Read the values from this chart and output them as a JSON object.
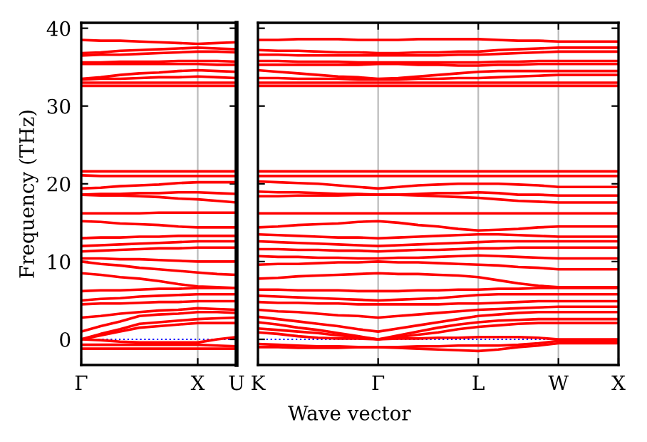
{
  "chart_data": [
    {
      "type": "line",
      "ylabel": "Frequency (THz)",
      "ylim": [
        -3.3,
        40.7
      ],
      "yticks": [
        0,
        10,
        20,
        30,
        40
      ],
      "grid": false,
      "legend": false,
      "marker": "none",
      "line_style": "solid",
      "categories": [
        "Γ",
        null,
        null,
        null,
        null,
        null,
        "X",
        null,
        "U"
      ],
      "ref_lines": [
        {
          "axis": "y",
          "value": 0,
          "color": "#0000ff",
          "line_style": "dotted"
        },
        {
          "axis": "x",
          "value": "X",
          "color": "#bbbbbb",
          "line_style": "solid"
        }
      ],
      "series": [
        {
          "color": "#ff0000",
          "values": [
            38.5,
            38.4,
            38.4,
            38.3,
            38.2,
            38.1,
            38.0,
            38.1,
            38.2
          ]
        },
        {
          "color": "#ff0000",
          "values": [
            36.8,
            36.9,
            37.1,
            37.2,
            37.3,
            37.4,
            37.5,
            37.4,
            37.3
          ]
        },
        {
          "color": "#ff0000",
          "values": [
            36.5,
            36.6,
            36.6,
            36.7,
            36.8,
            36.9,
            37.0,
            37.0,
            36.9
          ]
        },
        {
          "color": "#ff0000",
          "values": [
            35.6,
            35.6,
            35.7,
            35.7,
            35.7,
            35.8,
            35.8,
            35.8,
            35.7
          ]
        },
        {
          "color": "#ff0000",
          "values": [
            35.4,
            35.4,
            35.4,
            35.4,
            35.4,
            35.4,
            35.4,
            35.3,
            35.3
          ]
        },
        {
          "color": "#ff0000",
          "values": [
            33.5,
            33.7,
            34.0,
            34.2,
            34.3,
            34.5,
            34.6,
            34.5,
            34.4
          ]
        },
        {
          "color": "#ff0000",
          "values": [
            33.4,
            33.5,
            33.5,
            33.6,
            33.7,
            33.7,
            33.8,
            33.7,
            33.6
          ]
        },
        {
          "color": "#ff0000",
          "values": [
            33.0,
            33.0,
            33.0,
            33.0,
            33.0,
            33.0,
            33.0,
            33.0,
            33.0
          ]
        },
        {
          "color": "#ff0000",
          "values": [
            32.6,
            32.6,
            32.6,
            32.6,
            32.6,
            32.6,
            32.6,
            32.6,
            32.6
          ]
        },
        {
          "color": "#ff0000",
          "values": [
            21.6,
            21.6,
            21.6,
            21.6,
            21.6,
            21.6,
            21.6,
            21.6,
            21.6
          ]
        },
        {
          "color": "#ff0000",
          "values": [
            21.1,
            21.0,
            21.0,
            21.0,
            21.0,
            21.0,
            21.0,
            21.0,
            21.0
          ]
        },
        {
          "color": "#ff0000",
          "values": [
            19.4,
            19.5,
            19.7,
            19.8,
            19.9,
            20.1,
            20.2,
            20.2,
            20.2
          ]
        },
        {
          "color": "#ff0000",
          "values": [
            18.6,
            18.7,
            18.7,
            18.8,
            18.8,
            18.9,
            18.9,
            18.8,
            18.7
          ]
        },
        {
          "color": "#ff0000",
          "values": [
            18.6,
            18.5,
            18.5,
            18.4,
            18.3,
            18.1,
            18.0,
            17.8,
            17.6
          ]
        },
        {
          "color": "#ff0000",
          "values": [
            16.2,
            16.2,
            16.2,
            16.2,
            16.3,
            16.3,
            16.3,
            16.3,
            16.3
          ]
        },
        {
          "color": "#ff0000",
          "values": [
            15.2,
            15.1,
            14.9,
            14.8,
            14.7,
            14.5,
            14.4,
            14.4,
            14.4
          ]
        },
        {
          "color": "#ff0000",
          "values": [
            13.0,
            13.1,
            13.1,
            13.2,
            13.2,
            13.3,
            13.3,
            13.3,
            13.3
          ]
        },
        {
          "color": "#ff0000",
          "values": [
            12.0,
            12.1,
            12.2,
            12.3,
            12.4,
            12.5,
            12.6,
            12.6,
            12.6
          ]
        },
        {
          "color": "#ff0000",
          "values": [
            11.3,
            11.4,
            11.5,
            11.6,
            11.7,
            11.7,
            11.8,
            11.8,
            11.8
          ]
        },
        {
          "color": "#ff0000",
          "values": [
            10.4,
            10.4,
            10.3,
            10.3,
            10.2,
            10.1,
            10.0,
            10.0,
            10.0
          ]
        },
        {
          "color": "#ff0000",
          "values": [
            10.0,
            9.7,
            9.5,
            9.2,
            9.0,
            8.8,
            8.6,
            8.4,
            8.3
          ]
        },
        {
          "color": "#ff0000",
          "values": [
            8.5,
            8.3,
            8.0,
            7.8,
            7.5,
            7.1,
            6.8,
            6.7,
            6.6
          ]
        },
        {
          "color": "#ff0000",
          "values": [
            6.2,
            6.3,
            6.3,
            6.4,
            6.5,
            6.5,
            6.6,
            6.6,
            6.6
          ]
        },
        {
          "color": "#ff0000",
          "values": [
            5.0,
            5.2,
            5.3,
            5.5,
            5.6,
            5.7,
            5.8,
            5.8,
            5.8
          ]
        },
        {
          "color": "#ff0000",
          "values": [
            4.5,
            4.6,
            4.6,
            4.7,
            4.8,
            4.8,
            4.9,
            4.9,
            4.9
          ]
        },
        {
          "color": "#ff0000",
          "values": [
            2.8,
            3.0,
            3.3,
            3.5,
            3.7,
            3.8,
            4.0,
            3.9,
            3.8
          ]
        },
        {
          "color": "#ff0000",
          "values": [
            1.0,
            1.7,
            2.3,
            3.0,
            3.2,
            3.3,
            3.5,
            3.5,
            3.4
          ]
        },
        {
          "color": "#ff0000",
          "values": [
            0.0,
            0.7,
            1.3,
            2.0,
            2.2,
            2.4,
            2.6,
            2.7,
            2.8
          ]
        },
        {
          "color": "#ff0000",
          "values": [
            0.0,
            0.5,
            1.0,
            1.5,
            1.7,
            1.9,
            2.1,
            2.1,
            2.1
          ]
        },
        {
          "color": "#ff0000",
          "values": [
            0.0,
            -0.1,
            -0.3,
            -0.4,
            -0.4,
            -0.4,
            -0.4,
            0.0,
            0.3
          ]
        },
        {
          "color": "#ff0000",
          "values": [
            -0.7,
            -0.7,
            -0.7,
            -0.7,
            -0.7,
            -0.7,
            -0.7,
            -0.8,
            -0.9
          ]
        },
        {
          "color": "#ff0000",
          "values": [
            -1.2,
            -1.2,
            -1.2,
            -1.2,
            -1.2,
            -1.2,
            -1.2,
            -1.2,
            -1.2
          ]
        }
      ]
    },
    {
      "type": "line",
      "xlabel": "Wave vector",
      "ylim": [
        -3.3,
        40.7
      ],
      "yticks": [
        0,
        10,
        20,
        30,
        40
      ],
      "tick_labels": "x",
      "grid": false,
      "legend": false,
      "marker": "none",
      "line_style": "solid",
      "categories": [
        "K",
        null,
        null,
        null,
        null,
        null,
        "Γ",
        null,
        null,
        null,
        null,
        "L",
        null,
        null,
        null,
        "W",
        null,
        null,
        "X"
      ],
      "ref_lines": [
        {
          "axis": "y",
          "value": 0,
          "color": "#0000ff",
          "line_style": "dotted"
        },
        {
          "axis": "x",
          "value": "Γ",
          "color": "#bbbbbb",
          "line_style": "solid"
        },
        {
          "axis": "x",
          "value": "L",
          "color": "#bbbbbb",
          "line_style": "solid"
        },
        {
          "axis": "x",
          "value": "W",
          "color": "#bbbbbb",
          "line_style": "solid"
        }
      ],
      "series": [
        {
          "color": "#ff0000",
          "values": [
            38.5,
            38.5,
            38.6,
            38.6,
            38.6,
            38.5,
            38.5,
            38.5,
            38.6,
            38.6,
            38.6,
            38.6,
            38.5,
            38.4,
            38.4,
            38.3,
            38.3,
            38.3,
            38.3
          ]
        },
        {
          "color": "#ff0000",
          "values": [
            37.2,
            37.1,
            37.1,
            37.0,
            36.9,
            36.9,
            36.8,
            36.8,
            36.9,
            36.9,
            37.0,
            37.0,
            37.2,
            37.3,
            37.4,
            37.5,
            37.5,
            37.5,
            37.5
          ]
        },
        {
          "color": "#ff0000",
          "values": [
            36.6,
            36.6,
            36.5,
            36.5,
            36.5,
            36.5,
            36.5,
            36.5,
            36.5,
            36.5,
            36.6,
            36.6,
            36.7,
            36.8,
            36.9,
            37.0,
            37.0,
            37.0,
            37.0
          ]
        },
        {
          "color": "#ff0000",
          "values": [
            35.8,
            35.8,
            35.7,
            35.7,
            35.7,
            35.6,
            35.6,
            35.6,
            35.6,
            35.6,
            35.6,
            35.6,
            35.7,
            35.7,
            35.8,
            35.8,
            35.8,
            35.8,
            35.8
          ]
        },
        {
          "color": "#ff0000",
          "values": [
            35.3,
            35.3,
            35.3,
            35.3,
            35.3,
            35.3,
            35.4,
            35.4,
            35.3,
            35.3,
            35.2,
            35.2,
            35.3,
            35.3,
            35.4,
            35.4,
            35.4,
            35.4,
            35.4
          ]
        },
        {
          "color": "#ff0000",
          "values": [
            34.6,
            34.4,
            34.2,
            34.0,
            33.8,
            33.7,
            33.5,
            33.6,
            33.8,
            34.0,
            34.2,
            34.4,
            34.5,
            34.5,
            34.5,
            34.5,
            34.5,
            34.5,
            34.5
          ]
        },
        {
          "color": "#ff0000",
          "values": [
            33.6,
            33.6,
            33.5,
            33.5,
            33.5,
            33.4,
            33.4,
            33.4,
            33.5,
            33.5,
            33.6,
            33.6,
            33.7,
            33.8,
            33.9,
            34.0,
            34.0,
            34.0,
            34.0
          ]
        },
        {
          "color": "#ff0000",
          "values": [
            33.0,
            33.0,
            33.0,
            33.0,
            33.0,
            33.0,
            33.0,
            33.0,
            33.0,
            33.0,
            33.0,
            33.0,
            33.0,
            33.0,
            33.0,
            33.0,
            33.0,
            33.0,
            33.0
          ]
        },
        {
          "color": "#ff0000",
          "values": [
            32.6,
            32.6,
            32.6,
            32.6,
            32.6,
            32.6,
            32.6,
            32.6,
            32.6,
            32.6,
            32.6,
            32.6,
            32.6,
            32.6,
            32.6,
            32.6,
            32.6,
            32.6,
            32.6
          ]
        },
        {
          "color": "#ff0000",
          "values": [
            21.6,
            21.6,
            21.6,
            21.6,
            21.6,
            21.6,
            21.6,
            21.6,
            21.6,
            21.6,
            21.6,
            21.6,
            21.6,
            21.6,
            21.6,
            21.6,
            21.6,
            21.6,
            21.6
          ]
        },
        {
          "color": "#ff0000",
          "values": [
            21.0,
            21.0,
            21.0,
            21.0,
            21.0,
            21.0,
            21.0,
            21.0,
            21.0,
            21.0,
            21.0,
            21.0,
            21.0,
            21.0,
            21.0,
            21.0,
            21.0,
            21.0,
            21.0
          ]
        },
        {
          "color": "#ff0000",
          "values": [
            20.3,
            20.2,
            20.1,
            20.0,
            19.8,
            19.6,
            19.4,
            19.6,
            19.8,
            19.9,
            20.0,
            20.0,
            20.0,
            19.9,
            19.8,
            19.6,
            19.6,
            19.6,
            19.6
          ]
        },
        {
          "color": "#ff0000",
          "values": [
            19.0,
            18.9,
            18.9,
            18.8,
            18.7,
            18.7,
            18.6,
            18.6,
            18.7,
            18.8,
            18.8,
            18.9,
            18.8,
            18.6,
            18.6,
            18.5,
            18.5,
            18.5,
            18.5
          ]
        },
        {
          "color": "#ff0000",
          "values": [
            18.4,
            18.4,
            18.5,
            18.5,
            18.5,
            18.6,
            18.6,
            18.6,
            18.5,
            18.4,
            18.3,
            18.2,
            18.0,
            17.8,
            17.7,
            17.6,
            17.6,
            17.6,
            17.6
          ]
        },
        {
          "color": "#ff0000",
          "values": [
            16.2,
            16.2,
            16.2,
            16.2,
            16.2,
            16.2,
            16.2,
            16.2,
            16.2,
            16.2,
            16.2,
            16.2,
            16.2,
            16.2,
            16.2,
            16.2,
            16.2,
            16.2,
            16.2
          ]
        },
        {
          "color": "#ff0000",
          "values": [
            14.4,
            14.5,
            14.7,
            14.8,
            14.9,
            15.1,
            15.2,
            15.0,
            14.7,
            14.5,
            14.2,
            14.0,
            14.1,
            14.2,
            14.4,
            14.5,
            14.5,
            14.5,
            14.5
          ]
        },
        {
          "color": "#ff0000",
          "values": [
            13.5,
            13.4,
            13.3,
            13.2,
            13.1,
            13.1,
            13.0,
            13.1,
            13.2,
            13.3,
            13.4,
            13.5,
            13.5,
            13.4,
            13.3,
            13.2,
            13.2,
            13.2,
            13.2
          ]
        },
        {
          "color": "#ff0000",
          "values": [
            12.6,
            12.5,
            12.4,
            12.3,
            12.2,
            12.1,
            12.0,
            12.1,
            12.2,
            12.3,
            12.4,
            12.5,
            12.6,
            12.6,
            12.6,
            12.6,
            12.6,
            12.6,
            12.6
          ]
        },
        {
          "color": "#ff0000",
          "values": [
            11.6,
            11.6,
            11.5,
            11.5,
            11.4,
            11.4,
            11.3,
            11.4,
            11.5,
            11.5,
            11.6,
            11.7,
            11.7,
            11.8,
            11.8,
            11.8,
            11.8,
            11.8,
            11.8
          ]
        },
        {
          "color": "#ff0000",
          "values": [
            10.7,
            10.6,
            10.6,
            10.5,
            10.5,
            10.4,
            10.4,
            10.5,
            10.5,
            10.6,
            10.7,
            10.8,
            10.7,
            10.6,
            10.5,
            10.4,
            10.4,
            10.4,
            10.4
          ]
        },
        {
          "color": "#ff0000",
          "values": [
            9.6,
            9.7,
            9.7,
            9.8,
            9.9,
            9.9,
            10.0,
            9.9,
            9.9,
            9.8,
            9.7,
            9.6,
            9.5,
            9.3,
            9.2,
            9.0,
            9.0,
            9.0,
            9.0
          ]
        },
        {
          "color": "#ff0000",
          "values": [
            7.8,
            7.9,
            8.1,
            8.2,
            8.3,
            8.4,
            8.5,
            8.4,
            8.4,
            8.3,
            8.2,
            8.0,
            7.6,
            7.2,
            6.9,
            6.7,
            6.7,
            6.7,
            6.7
          ]
        },
        {
          "color": "#ff0000",
          "values": [
            6.4,
            6.4,
            6.3,
            6.3,
            6.3,
            6.2,
            6.2,
            6.2,
            6.3,
            6.3,
            6.4,
            6.4,
            6.5,
            6.5,
            6.6,
            6.6,
            6.6,
            6.6,
            6.6
          ]
        },
        {
          "color": "#ff0000",
          "values": [
            5.6,
            5.5,
            5.4,
            5.3,
            5.2,
            5.1,
            5.0,
            5.1,
            5.2,
            5.3,
            5.5,
            5.7,
            5.8,
            5.8,
            5.8,
            5.8,
            5.8,
            5.8,
            5.8
          ]
        },
        {
          "color": "#ff0000",
          "values": [
            4.8,
            4.7,
            4.7,
            4.6,
            4.6,
            4.5,
            4.5,
            4.5,
            4.5,
            4.5,
            4.6,
            4.6,
            4.7,
            4.8,
            4.9,
            4.9,
            4.9,
            4.9,
            4.9
          ]
        },
        {
          "color": "#ff0000",
          "values": [
            3.8,
            3.6,
            3.5,
            3.3,
            3.1,
            3.0,
            2.8,
            3.0,
            3.2,
            3.4,
            3.6,
            3.8,
            3.9,
            4.0,
            4.1,
            4.2,
            4.2,
            4.2,
            4.2
          ]
        },
        {
          "color": "#ff0000",
          "values": [
            2.9,
            2.6,
            2.3,
            2.0,
            1.7,
            1.3,
            1.0,
            1.4,
            1.8,
            2.2,
            2.6,
            3.0,
            3.2,
            3.4,
            3.5,
            3.5,
            3.5,
            3.5,
            3.5
          ]
        },
        {
          "color": "#ff0000",
          "values": [
            2.2,
            1.9,
            1.5,
            1.2,
            0.8,
            0.4,
            0.0,
            0.5,
            1.0,
            1.5,
            1.9,
            2.2,
            2.4,
            2.5,
            2.6,
            2.6,
            2.6,
            2.6,
            2.6
          ]
        },
        {
          "color": "#ff0000",
          "values": [
            1.4,
            1.2,
            1.0,
            0.8,
            0.5,
            0.3,
            0.0,
            0.3,
            0.6,
            0.9,
            1.3,
            1.6,
            1.8,
            2.0,
            2.1,
            2.1,
            2.1,
            2.1,
            2.1
          ]
        },
        {
          "color": "#ff0000",
          "values": [
            0.9,
            0.7,
            0.4,
            0.2,
            0.1,
            0.1,
            0.0,
            0.1,
            0.1,
            0.2,
            0.2,
            0.3,
            0.3,
            0.3,
            0.2,
            0.0,
            0.0,
            0.0,
            0.0
          ]
        },
        {
          "color": "#ff0000",
          "values": [
            -0.6,
            -0.7,
            -0.8,
            -0.9,
            -0.9,
            -1.0,
            -1.0,
            -1.0,
            -0.9,
            -0.9,
            -0.8,
            -0.8,
            -0.8,
            -0.7,
            -0.5,
            -0.2,
            -0.2,
            -0.2,
            -0.2
          ]
        },
        {
          "color": "#ff0000",
          "values": [
            -1.0,
            -1.0,
            -1.1,
            -1.1,
            -1.1,
            -1.0,
            -1.0,
            -1.1,
            -1.2,
            -1.3,
            -1.4,
            -1.5,
            -1.3,
            -1.0,
            -0.8,
            -0.5,
            -0.5,
            -0.5,
            -0.5
          ]
        }
      ]
    }
  ]
}
